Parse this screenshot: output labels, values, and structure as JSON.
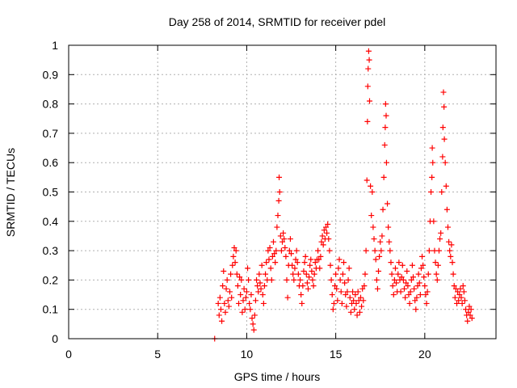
{
  "chart_data": {
    "type": "scatter",
    "title": "Day 258 of 2014, SRMTID for receiver pdel",
    "xlabel": "GPS time / hours",
    "ylabel": "SRMTID / TECUs",
    "xlim": [
      0,
      24
    ],
    "ylim": [
      0,
      1
    ],
    "xticks": [
      0,
      5,
      10,
      15,
      20
    ],
    "yticks": [
      0,
      0.1,
      0.2,
      0.3,
      0.4,
      0.5,
      0.6,
      0.7,
      0.8,
      0.9,
      1
    ],
    "xtick_labels": [
      "0",
      "5",
      "10",
      "15",
      "20"
    ],
    "ytick_labels": [
      "0",
      "0.1",
      "0.2",
      "0.3",
      "0.4",
      "0.5",
      "0.6",
      "0.7",
      "0.8",
      "0.9",
      "1"
    ],
    "grid": true,
    "marker": "+",
    "marker_color": "#ff0000",
    "series": [
      {
        "name": "pdel",
        "points": [
          [
            8.2,
            0.0
          ],
          [
            8.4,
            0.12
          ],
          [
            8.45,
            0.08
          ],
          [
            8.5,
            0.14
          ],
          [
            8.55,
            0.1
          ],
          [
            8.6,
            0.06
          ],
          [
            8.65,
            0.18
          ],
          [
            8.7,
            0.23
          ],
          [
            8.75,
            0.12
          ],
          [
            8.8,
            0.09
          ],
          [
            8.85,
            0.17
          ],
          [
            8.9,
            0.2
          ],
          [
            8.95,
            0.13
          ],
          [
            9.0,
            0.11
          ],
          [
            9.05,
            0.16
          ],
          [
            9.1,
            0.22
          ],
          [
            9.15,
            0.14
          ],
          [
            9.2,
            0.25
          ],
          [
            9.25,
            0.28
          ],
          [
            9.3,
            0.31
          ],
          [
            9.35,
            0.26
          ],
          [
            9.4,
            0.3
          ],
          [
            9.45,
            0.22
          ],
          [
            9.5,
            0.18
          ],
          [
            9.55,
            0.12
          ],
          [
            9.6,
            0.21
          ],
          [
            9.65,
            0.15
          ],
          [
            9.7,
            0.2
          ],
          [
            9.75,
            0.09
          ],
          [
            9.8,
            0.13
          ],
          [
            9.85,
            0.17
          ],
          [
            9.9,
            0.1
          ],
          [
            9.95,
            0.14
          ],
          [
            10.0,
            0.16
          ],
          [
            10.05,
            0.24
          ],
          [
            10.1,
            0.2
          ],
          [
            10.15,
            0.12
          ],
          [
            10.2,
            0.1
          ],
          [
            10.25,
            0.15
          ],
          [
            10.3,
            0.07
          ],
          [
            10.35,
            0.05
          ],
          [
            10.4,
            0.03
          ],
          [
            10.45,
            0.08
          ],
          [
            10.5,
            0.13
          ],
          [
            10.55,
            0.2
          ],
          [
            10.6,
            0.18
          ],
          [
            10.65,
            0.16
          ],
          [
            10.7,
            0.22
          ],
          [
            10.75,
            0.19
          ],
          [
            10.8,
            0.17
          ],
          [
            10.85,
            0.25
          ],
          [
            10.9,
            0.15
          ],
          [
            10.95,
            0.12
          ],
          [
            11.0,
            0.18
          ],
          [
            11.05,
            0.22
          ],
          [
            11.1,
            0.26
          ],
          [
            11.15,
            0.2
          ],
          [
            11.2,
            0.3
          ],
          [
            11.25,
            0.27
          ],
          [
            11.3,
            0.31
          ],
          [
            11.35,
            0.24
          ],
          [
            11.4,
            0.2
          ],
          [
            11.45,
            0.28
          ],
          [
            11.5,
            0.33
          ],
          [
            11.55,
            0.29
          ],
          [
            11.6,
            0.26
          ],
          [
            11.65,
            0.3
          ],
          [
            11.7,
            0.38
          ],
          [
            11.75,
            0.42
          ],
          [
            11.8,
            0.47
          ],
          [
            11.82,
            0.55
          ],
          [
            11.85,
            0.5
          ],
          [
            11.9,
            0.35
          ],
          [
            11.95,
            0.3
          ],
          [
            12.0,
            0.33
          ],
          [
            12.05,
            0.36
          ],
          [
            12.1,
            0.34
          ],
          [
            12.15,
            0.31
          ],
          [
            12.2,
            0.28
          ],
          [
            12.25,
            0.2
          ],
          [
            12.3,
            0.14
          ],
          [
            12.35,
            0.25
          ],
          [
            12.4,
            0.3
          ],
          [
            12.45,
            0.34
          ],
          [
            12.5,
            0.29
          ],
          [
            12.55,
            0.25
          ],
          [
            12.6,
            0.22
          ],
          [
            12.65,
            0.2
          ],
          [
            12.7,
            0.24
          ],
          [
            12.75,
            0.27
          ],
          [
            12.8,
            0.3
          ],
          [
            12.85,
            0.26
          ],
          [
            12.9,
            0.22
          ],
          [
            12.95,
            0.18
          ],
          [
            13.0,
            0.2
          ],
          [
            13.05,
            0.15
          ],
          [
            13.1,
            0.12
          ],
          [
            13.15,
            0.18
          ],
          [
            13.2,
            0.23
          ],
          [
            13.25,
            0.26
          ],
          [
            13.3,
            0.28
          ],
          [
            13.35,
            0.22
          ],
          [
            13.4,
            0.19
          ],
          [
            13.45,
            0.17
          ],
          [
            13.5,
            0.21
          ],
          [
            13.55,
            0.25
          ],
          [
            13.6,
            0.27
          ],
          [
            13.65,
            0.23
          ],
          [
            13.7,
            0.2
          ],
          [
            13.75,
            0.18
          ],
          [
            13.8,
            0.22
          ],
          [
            13.85,
            0.26
          ],
          [
            13.9,
            0.24
          ],
          [
            13.95,
            0.27
          ],
          [
            14.0,
            0.3
          ],
          [
            14.05,
            0.27
          ],
          [
            14.1,
            0.24
          ],
          [
            14.15,
            0.28
          ],
          [
            14.2,
            0.33
          ],
          [
            14.25,
            0.35
          ],
          [
            14.3,
            0.32
          ],
          [
            14.35,
            0.37
          ],
          [
            14.4,
            0.34
          ],
          [
            14.45,
            0.38
          ],
          [
            14.5,
            0.36
          ],
          [
            14.55,
            0.39
          ],
          [
            14.6,
            0.34
          ],
          [
            14.65,
            0.3
          ],
          [
            14.7,
            0.25
          ],
          [
            14.75,
            0.2
          ],
          [
            14.8,
            0.15
          ],
          [
            14.85,
            0.1
          ],
          [
            14.9,
            0.12
          ],
          [
            14.95,
            0.18
          ],
          [
            15.0,
            0.22
          ],
          [
            15.05,
            0.17
          ],
          [
            15.1,
            0.13
          ],
          [
            15.15,
            0.24
          ],
          [
            15.2,
            0.27
          ],
          [
            15.25,
            0.2
          ],
          [
            15.3,
            0.16
          ],
          [
            15.35,
            0.12
          ],
          [
            15.4,
            0.22
          ],
          [
            15.45,
            0.26
          ],
          [
            15.5,
            0.19
          ],
          [
            15.55,
            0.15
          ],
          [
            15.6,
            0.11
          ],
          [
            15.65,
            0.16
          ],
          [
            15.7,
            0.2
          ],
          [
            15.75,
            0.24
          ],
          [
            15.8,
            0.14
          ],
          [
            15.85,
            0.09
          ],
          [
            15.9,
            0.12
          ],
          [
            15.95,
            0.16
          ],
          [
            16.0,
            0.13
          ],
          [
            16.05,
            0.1
          ],
          [
            16.1,
            0.15
          ],
          [
            16.15,
            0.12
          ],
          [
            16.2,
            0.08
          ],
          [
            16.25,
            0.16
          ],
          [
            16.3,
            0.13
          ],
          [
            16.35,
            0.09
          ],
          [
            16.4,
            0.14
          ],
          [
            16.45,
            0.11
          ],
          [
            16.5,
            0.17
          ],
          [
            16.55,
            0.13
          ],
          [
            16.6,
            0.18
          ],
          [
            16.65,
            0.22
          ],
          [
            16.7,
            0.3
          ],
          [
            16.75,
            0.54
          ],
          [
            16.78,
            0.74
          ],
          [
            16.8,
            0.86
          ],
          [
            16.82,
            0.92
          ],
          [
            16.85,
            0.98
          ],
          [
            16.88,
            0.95
          ],
          [
            16.9,
            0.81
          ],
          [
            16.95,
            0.52
          ],
          [
            17.0,
            0.42
          ],
          [
            17.05,
            0.5
          ],
          [
            17.1,
            0.38
          ],
          [
            17.15,
            0.34
          ],
          [
            17.2,
            0.3
          ],
          [
            17.25,
            0.27
          ],
          [
            17.3,
            0.2
          ],
          [
            17.35,
            0.17
          ],
          [
            17.4,
            0.23
          ],
          [
            17.45,
            0.28
          ],
          [
            17.5,
            0.33
          ],
          [
            17.55,
            0.3
          ],
          [
            17.6,
            0.35
          ],
          [
            17.65,
            0.44
          ],
          [
            17.7,
            0.55
          ],
          [
            17.75,
            0.66
          ],
          [
            17.78,
            0.72
          ],
          [
            17.8,
            0.8
          ],
          [
            17.83,
            0.76
          ],
          [
            17.85,
            0.6
          ],
          [
            17.9,
            0.46
          ],
          [
            17.95,
            0.38
          ],
          [
            18.0,
            0.33
          ],
          [
            18.05,
            0.3
          ],
          [
            18.1,
            0.26
          ],
          [
            18.15,
            0.22
          ],
          [
            18.2,
            0.18
          ],
          [
            18.25,
            0.15
          ],
          [
            18.3,
            0.2
          ],
          [
            18.35,
            0.24
          ],
          [
            18.4,
            0.19
          ],
          [
            18.45,
            0.16
          ],
          [
            18.5,
            0.22
          ],
          [
            18.55,
            0.26
          ],
          [
            18.6,
            0.2
          ],
          [
            18.65,
            0.16
          ],
          [
            18.7,
            0.21
          ],
          [
            18.75,
            0.25
          ],
          [
            18.8,
            0.2
          ],
          [
            18.85,
            0.17
          ],
          [
            18.9,
            0.14
          ],
          [
            18.95,
            0.19
          ],
          [
            19.0,
            0.23
          ],
          [
            19.05,
            0.18
          ],
          [
            19.1,
            0.15
          ],
          [
            19.15,
            0.12
          ],
          [
            19.2,
            0.16
          ],
          [
            19.25,
            0.2
          ],
          [
            19.3,
            0.25
          ],
          [
            19.35,
            0.21
          ],
          [
            19.4,
            0.17
          ],
          [
            19.45,
            0.13
          ],
          [
            19.5,
            0.1
          ],
          [
            19.55,
            0.14
          ],
          [
            19.6,
            0.18
          ],
          [
            19.65,
            0.22
          ],
          [
            19.7,
            0.19
          ],
          [
            19.75,
            0.15
          ],
          [
            19.8,
            0.24
          ],
          [
            19.85,
            0.28
          ],
          [
            19.9,
            0.25
          ],
          [
            19.95,
            0.21
          ],
          [
            20.0,
            0.18
          ],
          [
            20.05,
            0.15
          ],
          [
            20.1,
            0.12
          ],
          [
            20.15,
            0.16
          ],
          [
            20.2,
            0.22
          ],
          [
            20.25,
            0.3
          ],
          [
            20.3,
            0.4
          ],
          [
            20.35,
            0.5
          ],
          [
            20.4,
            0.55
          ],
          [
            20.42,
            0.65
          ],
          [
            20.45,
            0.6
          ],
          [
            20.5,
            0.4
          ],
          [
            20.55,
            0.3
          ],
          [
            20.6,
            0.26
          ],
          [
            20.65,
            0.22
          ],
          [
            20.7,
            0.2
          ],
          [
            20.75,
            0.25
          ],
          [
            20.8,
            0.3
          ],
          [
            20.85,
            0.34
          ],
          [
            20.9,
            0.36
          ],
          [
            20.95,
            0.5
          ],
          [
            21.0,
            0.62
          ],
          [
            21.02,
            0.72
          ],
          [
            21.05,
            0.84
          ],
          [
            21.08,
            0.79
          ],
          [
            21.1,
            0.68
          ],
          [
            21.15,
            0.6
          ],
          [
            21.2,
            0.52
          ],
          [
            21.25,
            0.44
          ],
          [
            21.3,
            0.38
          ],
          [
            21.35,
            0.33
          ],
          [
            21.4,
            0.3
          ],
          [
            21.45,
            0.28
          ],
          [
            21.5,
            0.32
          ],
          [
            21.55,
            0.26
          ],
          [
            21.6,
            0.22
          ],
          [
            21.65,
            0.18
          ],
          [
            21.7,
            0.14
          ],
          [
            21.75,
            0.17
          ],
          [
            21.8,
            0.12
          ],
          [
            21.85,
            0.16
          ],
          [
            21.9,
            0.13
          ],
          [
            21.95,
            0.15
          ],
          [
            22.0,
            0.17
          ],
          [
            22.05,
            0.14
          ],
          [
            22.1,
            0.12
          ],
          [
            22.15,
            0.18
          ],
          [
            22.2,
            0.16
          ],
          [
            22.25,
            0.13
          ],
          [
            22.3,
            0.1
          ],
          [
            22.35,
            0.08
          ],
          [
            22.4,
            0.06
          ],
          [
            22.45,
            0.09
          ],
          [
            22.5,
            0.11
          ],
          [
            22.55,
            0.08
          ],
          [
            22.6,
            0.1
          ],
          [
            22.65,
            0.07
          ]
        ]
      }
    ]
  }
}
